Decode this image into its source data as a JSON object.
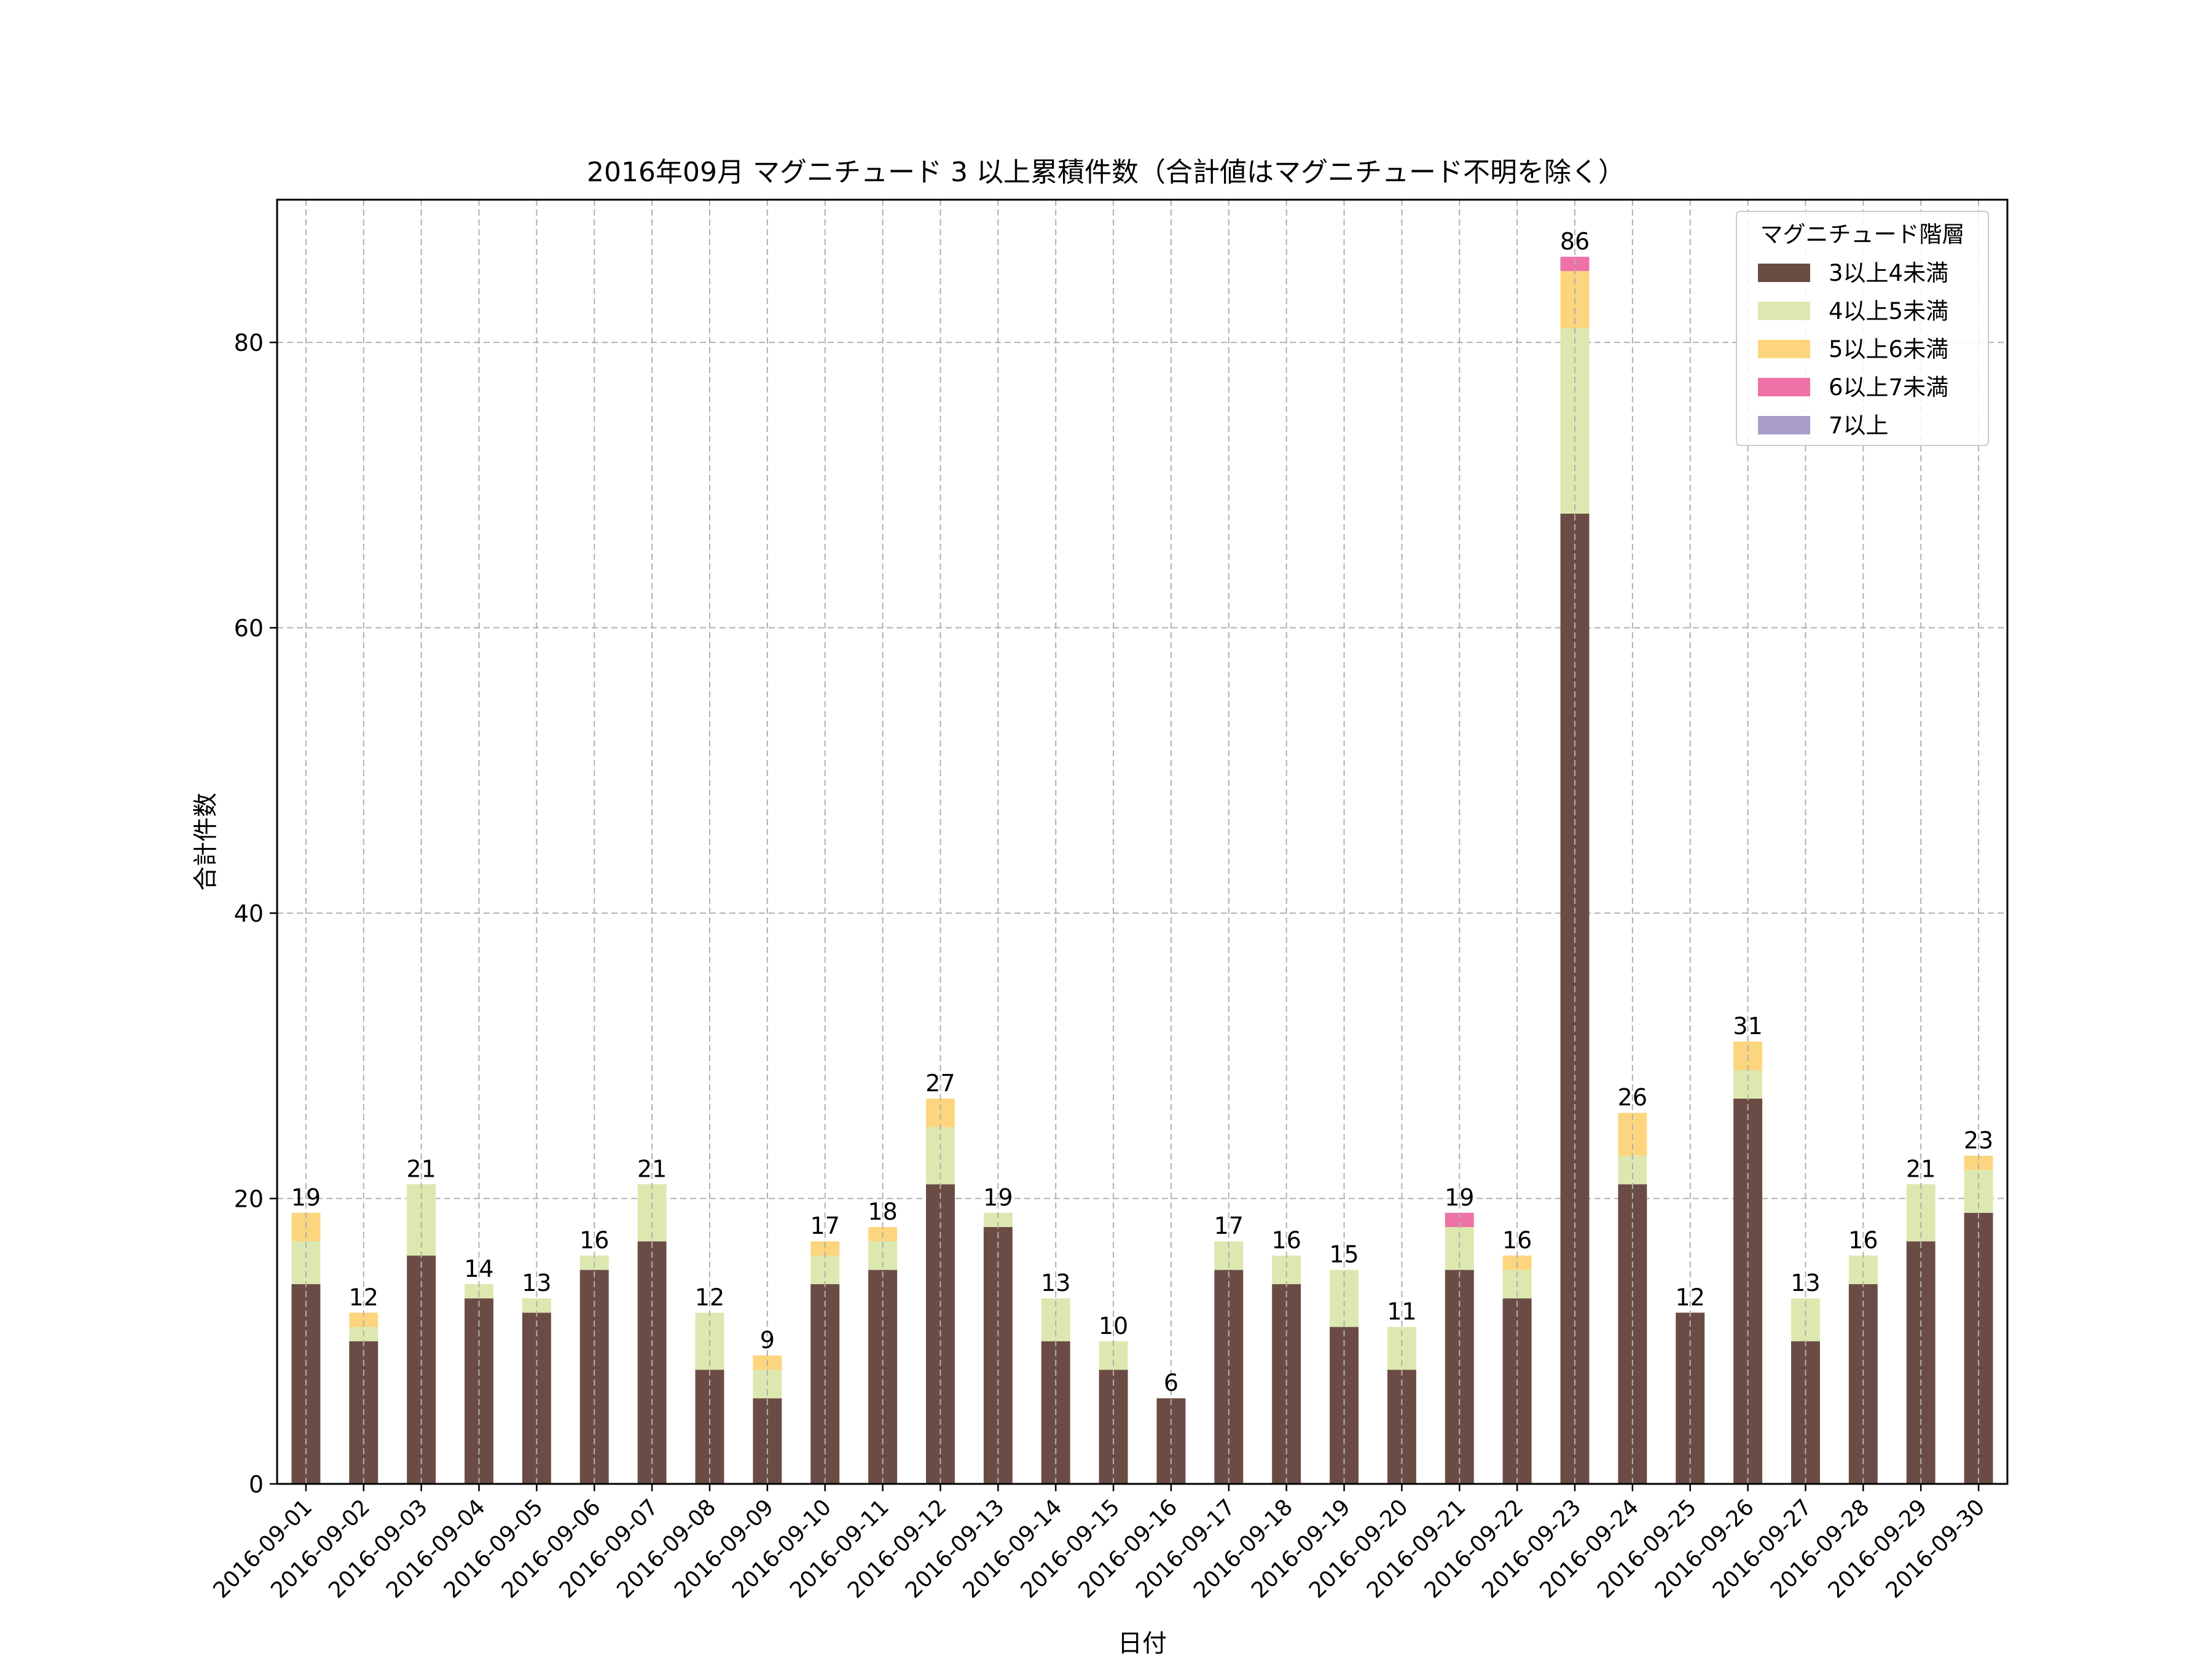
{
  "chart_data": {
    "type": "bar",
    "stacked": true,
    "title": "2016年09月 マグニチュード 3 以上累積件数（合計値はマグニチュード不明を除く）",
    "xlabel": "日付",
    "ylabel": "合計件数",
    "ylim": [
      0,
      90
    ],
    "yticks": [
      0,
      20,
      40,
      60,
      80
    ],
    "grid": true,
    "legend": {
      "title": "マグニチュード階層",
      "placement": "top-right"
    },
    "categories": [
      "2016-09-01",
      "2016-09-02",
      "2016-09-03",
      "2016-09-04",
      "2016-09-05",
      "2016-09-06",
      "2016-09-07",
      "2016-09-08",
      "2016-09-09",
      "2016-09-10",
      "2016-09-11",
      "2016-09-12",
      "2016-09-13",
      "2016-09-14",
      "2016-09-15",
      "2016-09-16",
      "2016-09-17",
      "2016-09-18",
      "2016-09-19",
      "2016-09-20",
      "2016-09-21",
      "2016-09-22",
      "2016-09-23",
      "2016-09-24",
      "2016-09-25",
      "2016-09-26",
      "2016-09-27",
      "2016-09-28",
      "2016-09-29",
      "2016-09-30"
    ],
    "series": [
      {
        "name": "3以上4未満",
        "color": "#6b4c45",
        "values": [
          14,
          10,
          16,
          13,
          12,
          15,
          17,
          8,
          6,
          14,
          15,
          21,
          18,
          10,
          8,
          6,
          15,
          14,
          11,
          8,
          15,
          13,
          68,
          21,
          12,
          27,
          10,
          14,
          17,
          19
        ]
      },
      {
        "name": "4以上5未満",
        "color": "#dde8b0",
        "values": [
          3,
          1,
          5,
          1,
          1,
          1,
          4,
          4,
          2,
          2,
          2,
          4,
          1,
          3,
          2,
          0,
          2,
          2,
          4,
          3,
          3,
          2,
          13,
          2,
          0,
          2,
          3,
          2,
          4,
          3
        ]
      },
      {
        "name": "5以上6未満",
        "color": "#fdd57e",
        "values": [
          2,
          1,
          0,
          0,
          0,
          0,
          0,
          0,
          1,
          1,
          1,
          2,
          0,
          0,
          0,
          0,
          0,
          0,
          0,
          0,
          0,
          1,
          4,
          3,
          0,
          2,
          0,
          0,
          0,
          1
        ]
      },
      {
        "name": "6以上7未満",
        "color": "#ee72a6",
        "values": [
          0,
          0,
          0,
          0,
          0,
          0,
          0,
          0,
          0,
          0,
          0,
          0,
          0,
          0,
          0,
          0,
          0,
          0,
          0,
          0,
          1,
          0,
          1,
          0,
          0,
          0,
          0,
          0,
          0,
          0
        ]
      },
      {
        "name": "7以上",
        "color": "#a89ccb",
        "values": [
          0,
          0,
          0,
          0,
          0,
          0,
          0,
          0,
          0,
          0,
          0,
          0,
          0,
          0,
          0,
          0,
          0,
          0,
          0,
          0,
          0,
          0,
          0,
          0,
          0,
          0,
          0,
          0,
          0,
          0
        ]
      }
    ],
    "totals": [
      19,
      12,
      21,
      14,
      13,
      16,
      21,
      12,
      9,
      17,
      18,
      27,
      19,
      13,
      10,
      6,
      17,
      16,
      15,
      11,
      19,
      16,
      86,
      26,
      12,
      31,
      13,
      16,
      21,
      23
    ]
  }
}
